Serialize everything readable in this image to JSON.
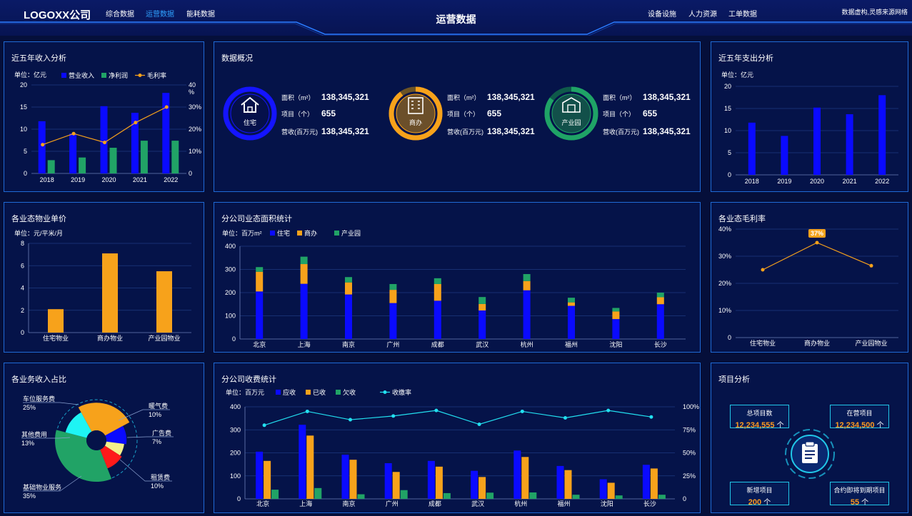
{
  "header": {
    "logo": "LOGOXX公司",
    "nav_left": [
      "综合数据",
      "运营数据",
      "能耗数据"
    ],
    "active_index": 1,
    "title": "运营数据",
    "nav_right": [
      "设备设施",
      "人力资源",
      "工单数据"
    ],
    "note": "数据虚构,灵感来源网络"
  },
  "income": {
    "title": "近五年收入分析",
    "unit": "单位：亿元",
    "legend": [
      "营业收入",
      "净利润",
      "毛利率"
    ],
    "colors": {
      "revenue": "#0a0aff",
      "profit": "#21a366",
      "margin": "#f7a21b"
    },
    "chart_data": {
      "type": "bar",
      "categories": [
        "2018",
        "2019",
        "2020",
        "2021",
        "2022"
      ],
      "series": [
        {
          "name": "营业收入",
          "values": [
            11.8,
            9,
            15.2,
            13.7,
            18.2
          ]
        },
        {
          "name": "净利润",
          "values": [
            3,
            3.6,
            5.8,
            7.4,
            7.4
          ]
        },
        {
          "name": "毛利率",
          "values": [
            13,
            18,
            14,
            23,
            30
          ]
        }
      ],
      "ylim": [
        0,
        20
      ],
      "y2lim": [
        0,
        40
      ],
      "yticks": [
        "0",
        "5",
        "10",
        "15",
        "20"
      ],
      "y2ticks": [
        "0",
        "10%",
        "20%",
        "30%",
        "40"
      ],
      "y2unit": "%"
    }
  },
  "overview": {
    "title": "数据概况",
    "rows": [
      "面积（m²）",
      "项目（个）",
      "营收(百万元)"
    ],
    "blocks": [
      {
        "name": "住宅",
        "area": "138,345,321",
        "projects": "655",
        "revenue": "138,345,321",
        "color": "#1414ff",
        "track": "#0c1c7a",
        "pct": 1.0
      },
      {
        "name": "商办",
        "area": "138,345,321",
        "projects": "655",
        "revenue": "138,345,321",
        "color": "#f7a21b",
        "track": "#6b5326",
        "pct": 0.9
      },
      {
        "name": "产业园",
        "area": "138,345,321",
        "projects": "655",
        "revenue": "138,345,321",
        "color": "#1fa366",
        "track": "#0f5a4a",
        "pct": 0.85
      }
    ]
  },
  "expense": {
    "title": "近五年支出分析",
    "unit": "单位：亿元",
    "color": "#0a0aff",
    "chart_data": {
      "type": "bar",
      "categories": [
        "2018",
        "2019",
        "2020",
        "2021",
        "2022"
      ],
      "values": [
        11.8,
        8.8,
        15.2,
        13.7,
        18
      ],
      "ylim": [
        0,
        20
      ],
      "yticks": [
        "0",
        "5",
        "10",
        "15",
        "20"
      ]
    }
  },
  "unitprice": {
    "title": "各业态物业单价",
    "unit": "单位：元/平米/月",
    "color": "#f7a21b",
    "chart_data": {
      "type": "bar",
      "categories": [
        "住宅物业",
        "商办物业",
        "产业园物业"
      ],
      "values": [
        2.1,
        7.1,
        5.5
      ],
      "ylim": [
        0,
        8
      ],
      "yticks": [
        "0",
        "2",
        "4",
        "6",
        "8"
      ]
    }
  },
  "areastat": {
    "title": "分公司业态面积统计",
    "unit": "单位：百万m²",
    "legend": [
      "住宅",
      "商办",
      "产业园"
    ],
    "colors": [
      "#0a0aff",
      "#f7a21b",
      "#21a366"
    ],
    "chart_data": {
      "type": "bar",
      "categories": [
        "北京",
        "上海",
        "南京",
        "广州",
        "成都",
        "武汉",
        "杭州",
        "福州",
        "沈阳",
        "长沙"
      ],
      "series": [
        {
          "name": "住宅",
          "values": [
            205,
            238,
            192,
            155,
            165,
            123,
            210,
            143,
            86,
            150
          ]
        },
        {
          "name": "商办",
          "values": [
            85,
            85,
            52,
            57,
            72,
            28,
            40,
            15,
            33,
            30
          ]
        },
        {
          "name": "产业园",
          "values": [
            20,
            32,
            23,
            25,
            25,
            30,
            30,
            20,
            15,
            20
          ]
        }
      ],
      "ylim": [
        0,
        400
      ],
      "yticks": [
        "0",
        "100",
        "200",
        "300",
        "400"
      ]
    }
  },
  "margin": {
    "title": "各业态毛利率",
    "badge": "37%",
    "color": "#f7a21b",
    "chart_data": {
      "type": "line",
      "categories": [
        "住宅物业",
        "商办物业",
        "产业园物业"
      ],
      "values": [
        25,
        35,
        26.5
      ],
      "ylim": [
        0,
        40
      ],
      "yticks": [
        "0",
        "10%",
        "20%",
        "30%",
        "40%"
      ]
    }
  },
  "share": {
    "title": "各业务收入占比",
    "chart_data": {
      "type": "pie",
      "slices": [
        {
          "name": "车位服务费",
          "value": 25,
          "label": "25%",
          "color": "#f7a21b"
        },
        {
          "name": "暖气费",
          "value": 10,
          "label": "10%",
          "color": "#0a0aff"
        },
        {
          "name": "广告费",
          "value": 7,
          "label": "7%",
          "color": "#f4f08a"
        },
        {
          "name": "租赁费",
          "value": 10,
          "label": "10%",
          "color": "#ff1a1a"
        },
        {
          "name": "基础物业服务",
          "value": 35,
          "label": "35%",
          "color": "#21a366"
        },
        {
          "name": "其他费用",
          "value": 13,
          "label": "13%",
          "color": "#1ef4f4"
        }
      ]
    }
  },
  "fees": {
    "title": "分公司收费统计",
    "unit": "单位：百万元",
    "legend": [
      "应收",
      "已收",
      "欠收",
      "收缴率"
    ],
    "colors": [
      "#0a0aff",
      "#f7a21b",
      "#21a366",
      "#22e0f0"
    ],
    "chart_data": {
      "type": "bar",
      "categories": [
        "北京",
        "上海",
        "南京",
        "广州",
        "成都",
        "武汉",
        "杭州",
        "福州",
        "沈阳",
        "长沙"
      ],
      "series": [
        {
          "name": "应收",
          "values": [
            205,
            322,
            192,
            155,
            165,
            122,
            210,
            143,
            85,
            148
          ]
        },
        {
          "name": "已收",
          "values": [
            165,
            275,
            170,
            117,
            140,
            95,
            182,
            125,
            70,
            132
          ]
        },
        {
          "name": "欠收",
          "values": [
            40,
            47,
            20,
            38,
            25,
            27,
            28,
            18,
            15,
            18
          ]
        },
        {
          "name": "收缴率",
          "values": [
            80,
            95,
            86,
            90,
            96,
            81,
            95,
            88,
            96,
            89
          ]
        }
      ],
      "ylim": [
        0,
        400
      ],
      "yticks": [
        "0",
        "100",
        "200",
        "300",
        "400"
      ],
      "y2ticks": [
        "0",
        "25%",
        "50%",
        "75%",
        "100%"
      ]
    }
  },
  "project": {
    "title": "项目分析",
    "items": [
      {
        "label": "总项目数",
        "value": "12,234,555",
        "unit": "个"
      },
      {
        "label": "在营项目",
        "value": "12,234,500",
        "unit": "个"
      },
      {
        "label": "新增项目",
        "value": "200",
        "unit": "个"
      },
      {
        "label": "合约即将到期项目",
        "value": "55",
        "unit": "个"
      }
    ]
  }
}
